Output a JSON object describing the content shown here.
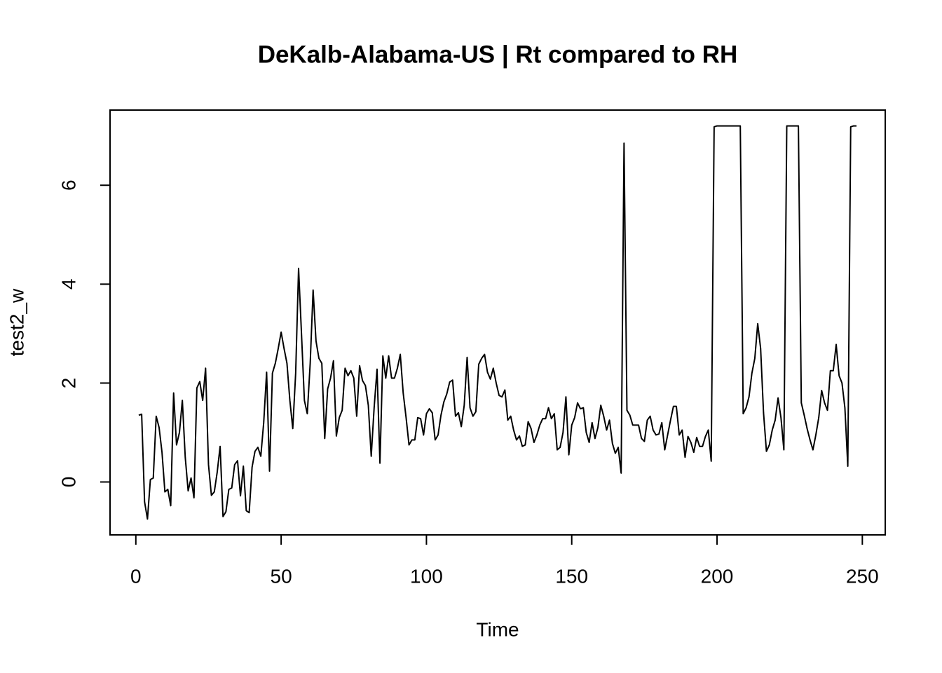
{
  "chart_data": {
    "type": "line",
    "title": "DeKalb-Alabama-US | Rt compared to RH",
    "x_label": "Time",
    "y_label": "test2_w",
    "xlim": [
      -8.88,
      257.88
    ],
    "ylim": [
      -1.07,
      7.52
    ],
    "xticks": [
      0,
      50,
      100,
      150,
      200,
      250
    ],
    "yticks": [
      0,
      2,
      4,
      6
    ],
    "x": [
      1,
      2,
      3,
      4,
      5,
      6,
      7,
      8,
      9,
      10,
      11,
      12,
      13,
      14,
      15,
      16,
      17,
      18,
      19,
      20,
      21,
      22,
      23,
      24,
      25,
      26,
      27,
      28,
      29,
      30,
      31,
      32,
      33,
      34,
      35,
      36,
      37,
      38,
      39,
      40,
      41,
      42,
      43,
      44,
      45,
      46,
      47,
      48,
      49,
      50,
      51,
      52,
      53,
      54,
      55,
      56,
      57,
      58,
      59,
      60,
      61,
      62,
      63,
      64,
      65,
      66,
      67,
      68,
      69,
      70,
      71,
      72,
      73,
      74,
      75,
      76,
      77,
      78,
      79,
      80,
      81,
      82,
      83,
      84,
      85,
      86,
      87,
      88,
      89,
      90,
      91,
      92,
      93,
      94,
      95,
      96,
      97,
      98,
      99,
      100,
      101,
      102,
      103,
      104,
      105,
      106,
      107,
      108,
      109,
      110,
      111,
      112,
      113,
      114,
      115,
      116,
      117,
      118,
      119,
      120,
      121,
      122,
      123,
      124,
      125,
      126,
      127,
      128,
      129,
      130,
      131,
      132,
      133,
      134,
      135,
      136,
      137,
      138,
      139,
      140,
      141,
      142,
      143,
      144,
      145,
      146,
      147,
      148,
      149,
      150,
      151,
      152,
      153,
      154,
      155,
      156,
      157,
      158,
      159,
      160,
      161,
      162,
      163,
      164,
      165,
      166,
      167,
      168,
      169,
      170,
      171,
      172,
      173,
      174,
      175,
      176,
      177,
      178,
      179,
      180,
      181,
      182,
      183,
      184,
      185,
      186,
      187,
      188,
      189,
      190,
      191,
      192,
      193,
      194,
      195,
      196,
      197,
      198,
      199,
      200,
      201,
      202,
      203,
      204,
      205,
      206,
      207,
      208,
      209,
      210,
      211,
      212,
      213,
      214,
      215,
      216,
      217,
      218,
      219,
      220,
      221,
      222,
      223,
      224,
      225,
      226,
      227,
      228,
      229,
      230,
      231,
      232,
      233,
      234,
      235,
      236,
      237,
      238,
      239,
      240,
      241,
      242,
      243,
      244,
      245,
      246,
      247,
      248
    ],
    "series": [
      {
        "color": "#000000",
        "values": [
          1.35,
          1.37,
          -0.4,
          -0.75,
          0.05,
          0.08,
          1.33,
          1.1,
          0.6,
          -0.2,
          -0.15,
          -0.48,
          1.8,
          0.75,
          1.0,
          1.65,
          0.5,
          -0.18,
          0.08,
          -0.32,
          1.9,
          2.03,
          1.65,
          2.3,
          0.35,
          -0.27,
          -0.2,
          0.2,
          0.72,
          -0.7,
          -0.6,
          -0.15,
          -0.12,
          0.35,
          0.43,
          -0.28,
          0.32,
          -0.58,
          -0.62,
          0.3,
          0.62,
          0.7,
          0.52,
          1.2,
          2.22,
          0.22,
          2.2,
          2.4,
          2.7,
          3.03,
          2.7,
          2.4,
          1.65,
          1.08,
          2.2,
          4.32,
          3.0,
          1.65,
          1.38,
          2.4,
          3.88,
          2.85,
          2.5,
          2.4,
          0.88,
          1.88,
          2.1,
          2.45,
          0.93,
          1.3,
          1.45,
          2.3,
          2.15,
          2.25,
          2.1,
          1.33,
          2.35,
          2.05,
          1.95,
          1.55,
          0.52,
          1.5,
          2.28,
          0.38,
          2.55,
          2.1,
          2.55,
          2.1,
          2.1,
          2.3,
          2.58,
          1.8,
          1.3,
          0.75,
          0.85,
          0.85,
          1.3,
          1.28,
          0.95,
          1.38,
          1.48,
          1.4,
          0.85,
          0.95,
          1.35,
          1.62,
          1.78,
          2.02,
          2.06,
          1.33,
          1.4,
          1.12,
          1.55,
          2.52,
          1.5,
          1.33,
          1.42,
          2.38,
          2.5,
          2.58,
          2.22,
          2.08,
          2.3,
          2.0,
          1.75,
          1.72,
          1.86,
          1.25,
          1.33,
          1.05,
          0.85,
          0.93,
          0.72,
          0.75,
          1.22,
          1.08,
          0.8,
          0.95,
          1.15,
          1.28,
          1.28,
          1.5,
          1.28,
          1.38,
          0.65,
          0.7,
          1.0,
          1.72,
          0.55,
          1.15,
          1.3,
          1.6,
          1.48,
          1.5,
          1.0,
          0.8,
          1.2,
          0.88,
          1.1,
          1.55,
          1.33,
          1.05,
          1.25,
          0.78,
          0.58,
          0.7,
          0.18,
          6.85,
          1.45,
          1.35,
          1.15,
          1.15,
          1.15,
          0.88,
          0.82,
          1.25,
          1.33,
          1.05,
          0.95,
          0.97,
          1.2,
          0.65,
          0.95,
          1.25,
          1.53,
          1.53,
          0.95,
          1.05,
          0.5,
          0.92,
          0.8,
          0.6,
          0.9,
          0.72,
          0.72,
          0.92,
          1.05,
          0.42,
          7.18,
          7.2,
          7.2,
          7.2,
          7.2,
          7.2,
          7.2,
          7.2,
          7.2,
          7.2,
          1.38,
          1.5,
          1.72,
          2.2,
          2.5,
          3.2,
          2.7,
          1.4,
          0.62,
          0.75,
          1.05,
          1.25,
          1.7,
          1.3,
          0.65,
          7.2,
          7.2,
          7.2,
          7.2,
          7.2,
          1.6,
          1.35,
          1.08,
          0.85,
          0.65,
          0.95,
          1.3,
          1.85,
          1.6,
          1.45,
          2.25,
          2.25,
          2.78,
          2.15,
          2.0,
          1.5,
          0.32,
          7.18,
          7.2,
          7.2
        ]
      }
    ]
  }
}
